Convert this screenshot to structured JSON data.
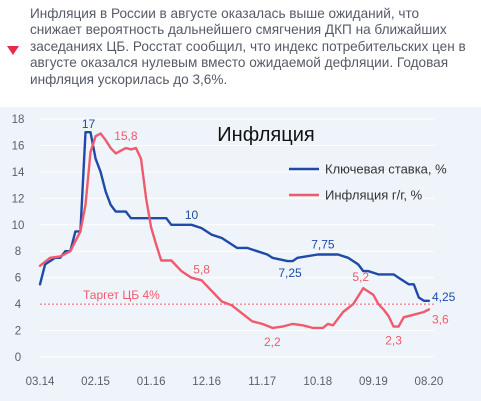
{
  "caption": "Инфляция в России в августе оказалась выше ожиданий, что снижает вероятность дальнейшего смягчения ДКП на ближайших заседаниях ЦБ. Росстат сообщил, что индекс потребительских цен в августе оказался нулевым вместо ожидаемой дефляции. Годовая инфляция ускорилась до 3,6%.",
  "colors": {
    "accent": "#e8294b",
    "key_rate": "#1f4aa8",
    "inflation": "#ef5b6d",
    "target": "#ef5b6d",
    "chart_bg": "#eef4f9",
    "axis_text": "#5b5f6b",
    "grid": "#ffffff"
  },
  "chart_data": {
    "type": "line",
    "title": "Инфляция",
    "xlim": [
      0,
      78
    ],
    "ylim": [
      0,
      18
    ],
    "y_ticks": [
      0,
      2,
      4,
      6,
      8,
      10,
      12,
      14,
      16,
      18
    ],
    "x_ticks": [
      {
        "x": 0,
        "label": "03.14"
      },
      {
        "x": 11,
        "label": "02.15"
      },
      {
        "x": 22,
        "label": "01.16"
      },
      {
        "x": 33,
        "label": "12.16"
      },
      {
        "x": 44,
        "label": "11.17"
      },
      {
        "x": 55,
        "label": "10.18"
      },
      {
        "x": 66,
        "label": "09.19"
      },
      {
        "x": 77,
        "label": "08.20"
      }
    ],
    "legend": "right",
    "target_line": {
      "value": 4,
      "label": "Таргет ЦБ 4%"
    },
    "series": [
      {
        "name": "Ключевая ставка, %",
        "color_key": "key_rate",
        "x": [
          0,
          1,
          3,
          4,
          5,
          6,
          7,
          8,
          9,
          9.5,
          10,
          11,
          12,
          13,
          14,
          15,
          17,
          18,
          25,
          26,
          30,
          32,
          34,
          36,
          39,
          40,
          41,
          43,
          45,
          46,
          49,
          50,
          51,
          55,
          59,
          61,
          62,
          63,
          64,
          65,
          67,
          70,
          71,
          73,
          74,
          75,
          76,
          77
        ],
        "values": [
          5.5,
          7,
          7.5,
          7.5,
          8,
          8,
          9.5,
          9.5,
          17,
          17,
          17,
          15,
          14,
          12.5,
          11.5,
          11,
          11,
          10.5,
          10.5,
          10,
          10,
          9.75,
          9.25,
          9,
          8.25,
          8.25,
          8.25,
          8,
          7.75,
          7.5,
          7.25,
          7.25,
          7.5,
          7.75,
          7.75,
          7.5,
          7.25,
          7,
          6.5,
          6.5,
          6.25,
          6.25,
          6,
          5.5,
          5.5,
          4.5,
          4.25,
          4.25
        ]
      },
      {
        "name": "Инфляция г/г, %",
        "color_key": "inflation",
        "x": [
          0,
          2,
          4,
          6,
          8,
          9,
          10,
          11,
          12,
          13,
          14,
          15,
          16,
          17,
          18,
          19,
          20,
          21,
          22,
          23,
          24,
          26,
          28,
          30,
          32,
          34,
          36,
          38,
          40,
          42,
          44,
          46,
          48,
          50,
          52,
          54,
          56,
          57,
          58,
          60,
          62,
          64,
          66,
          67,
          68,
          69,
          70,
          71,
          72,
          74,
          76,
          77
        ],
        "values": [
          6.9,
          7.5,
          7.6,
          8,
          9.5,
          11.5,
          15.5,
          16.7,
          16.9,
          16.4,
          15.8,
          15.4,
          15.6,
          15.8,
          15.7,
          15.8,
          15.0,
          12.0,
          9.8,
          8.5,
          7.3,
          7.3,
          6.5,
          6.0,
          5.8,
          5.0,
          4.2,
          3.9,
          3.3,
          2.7,
          2.5,
          2.2,
          2.3,
          2.5,
          2.4,
          2.2,
          2.2,
          2.5,
          2.4,
          3.4,
          4.0,
          5.2,
          4.7,
          4.0,
          3.6,
          3.1,
          2.3,
          2.3,
          3.0,
          3.2,
          3.4,
          3.6
        ]
      }
    ],
    "annotations": [
      {
        "text": "17",
        "x": 9.6,
        "y": 17,
        "series": 0,
        "anchor": "middle",
        "dx": 0,
        "dy": -4
      },
      {
        "text": "15,8",
        "x": 17,
        "y": 15.8,
        "series": 1,
        "anchor": "middle",
        "dx": 0,
        "dy": -8
      },
      {
        "text": "10",
        "x": 30,
        "y": 10,
        "series": 0,
        "anchor": "middle",
        "dx": 0,
        "dy": -6
      },
      {
        "text": "5,8",
        "x": 32,
        "y": 5.8,
        "series": 1,
        "anchor": "middle",
        "dx": 0,
        "dy": -7
      },
      {
        "text": "7,25",
        "x": 49.5,
        "y": 7.25,
        "series": 0,
        "anchor": "middle",
        "dx": 0,
        "dy": 16
      },
      {
        "text": "7,75",
        "x": 56,
        "y": 7.75,
        "series": 0,
        "anchor": "middle",
        "dx": 0,
        "dy": -6
      },
      {
        "text": "2,2",
        "x": 46,
        "y": 2.2,
        "series": 1,
        "anchor": "middle",
        "dx": 0,
        "dy": 18
      },
      {
        "text": "5,2",
        "x": 63.5,
        "y": 5.2,
        "series": 1,
        "anchor": "middle",
        "dx": 0,
        "dy": -7
      },
      {
        "text": "2,3",
        "x": 70,
        "y": 2.3,
        "series": 1,
        "anchor": "middle",
        "dx": 0,
        "dy": 18
      },
      {
        "text": "4,25",
        "x": 76.8,
        "y": 4.25,
        "series": 0,
        "anchor": "start",
        "dx": 4,
        "dy": 0
      },
      {
        "text": "3,6",
        "x": 76.8,
        "y": 3.6,
        "series": 1,
        "anchor": "start",
        "dx": 4,
        "dy": 14
      }
    ]
  }
}
